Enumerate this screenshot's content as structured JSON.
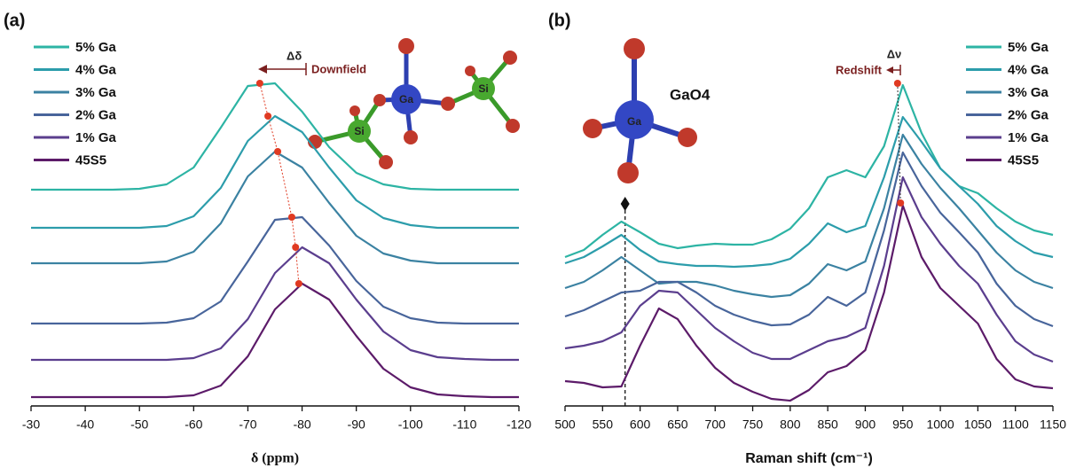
{
  "chart_data": [
    {
      "type": "line",
      "title": "(a)",
      "xlabel": "δ (ppm)",
      "xlim": [
        -30,
        -120
      ],
      "xticks": [
        -30,
        -40,
        -50,
        -60,
        -70,
        -80,
        -90,
        -100,
        -110,
        -120
      ],
      "ylim": [
        0,
        420
      ],
      "legend": "upper left",
      "x": [
        -30,
        -35,
        -40,
        -45,
        -50,
        -55,
        -60,
        -65,
        -70,
        -75,
        -80,
        -85,
        -90,
        -95,
        -100,
        -105,
        -110,
        -115,
        -120
      ],
      "series": [
        {
          "name": "5% Ga",
          "color": "#2db4a4",
          "values": [
            244,
            244,
            244,
            244,
            245,
            250,
            269,
            314,
            361,
            364,
            332,
            292,
            263,
            250,
            245,
            244,
            244,
            244,
            244
          ]
        },
        {
          "name": "4% Ga",
          "color": "#2c9dab",
          "values": [
            201,
            201,
            201,
            201,
            201,
            203,
            214,
            246,
            299,
            327,
            309,
            269,
            232,
            212,
            204,
            201,
            201,
            201,
            201
          ]
        },
        {
          "name": "3% Ga",
          "color": "#3b82a2",
          "values": [
            161,
            161,
            161,
            161,
            161,
            163,
            174,
            206,
            259,
            287,
            269,
            229,
            192,
            172,
            164,
            161,
            161,
            161,
            161
          ]
        },
        {
          "name": "2% Ga",
          "color": "#48659b",
          "values": [
            93,
            93,
            93,
            93,
            93,
            94,
            99,
            118,
            163,
            210,
            213,
            181,
            141,
            112,
            99,
            94,
            93,
            93,
            93
          ]
        },
        {
          "name": "1% Ga",
          "color": "#5b3e8e",
          "values": [
            52,
            52,
            52,
            52,
            52,
            52,
            54,
            65,
            98,
            150,
            179,
            161,
            120,
            84,
            63,
            55,
            53,
            52,
            52
          ]
        },
        {
          "name": "45S5",
          "color": "#5c1b69",
          "values": [
            10,
            10,
            10,
            10,
            10,
            10,
            12,
            23,
            56,
            109,
            138,
            120,
            79,
            42,
            21,
            13,
            11,
            10,
            10
          ]
        }
      ],
      "markers": {
        "color": "#e03a22",
        "x": [
          -72.2,
          -73.7,
          -75.5,
          -78.1,
          -78.8,
          -79.4
        ],
        "values": [
          364,
          327,
          287,
          213,
          179,
          138
        ]
      },
      "annotations": [
        "Δδ",
        "Downfield",
        "Ga",
        "Si",
        "Si"
      ]
    },
    {
      "type": "line",
      "title": "(b)",
      "xlabel": "Raman shift (cm⁻¹)",
      "xlim": [
        500,
        1150
      ],
      "xticks": [
        500,
        550,
        600,
        650,
        700,
        750,
        800,
        850,
        900,
        950,
        1000,
        1050,
        1100,
        1150
      ],
      "ylim": [
        0,
        420
      ],
      "legend": "upper right",
      "x": [
        500,
        525,
        550,
        575,
        600,
        625,
        650,
        675,
        700,
        725,
        750,
        775,
        800,
        825,
        850,
        875,
        900,
        925,
        950,
        975,
        1000,
        1025,
        1050,
        1075,
        1100,
        1125,
        1150
      ],
      "series": [
        {
          "name": "5% Ga",
          "color": "#2db4a4",
          "values": [
            168,
            176,
            193,
            208,
            196,
            183,
            178,
            181,
            183,
            182,
            182,
            188,
            200,
            223,
            258,
            266,
            258,
            293,
            362,
            308,
            268,
            248,
            240,
            223,
            208,
            198,
            193
          ]
        },
        {
          "name": "4% Ga",
          "color": "#2c9dab",
          "values": [
            161,
            168,
            180,
            193,
            176,
            163,
            160,
            158,
            158,
            157,
            158,
            160,
            166,
            183,
            206,
            196,
            203,
            258,
            326,
            298,
            268,
            248,
            228,
            203,
            186,
            173,
            168
          ]
        },
        {
          "name": "3% Ga",
          "color": "#3b82a2",
          "values": [
            133,
            140,
            153,
            168,
            153,
            138,
            140,
            140,
            136,
            130,
            126,
            123,
            125,
            138,
            160,
            153,
            163,
            223,
            306,
            273,
            246,
            223,
            198,
            173,
            153,
            140,
            133
          ]
        },
        {
          "name": "2% Ga",
          "color": "#48659b",
          "values": [
            101,
            108,
            118,
            128,
            130,
            140,
            140,
            128,
            113,
            103,
            96,
            91,
            92,
            103,
            123,
            113,
            128,
            198,
            286,
            248,
            218,
            196,
            173,
            138,
            113,
            98,
            90
          ]
        },
        {
          "name": "1% Ga",
          "color": "#5b3e8e",
          "values": [
            65,
            68,
            73,
            83,
            113,
            130,
            128,
            108,
            88,
            73,
            60,
            53,
            53,
            63,
            73,
            78,
            88,
            158,
            258,
            213,
            183,
            158,
            138,
            103,
            73,
            58,
            50
          ]
        },
        {
          "name": "45S5",
          "color": "#5c1b69",
          "values": [
            28,
            26,
            21,
            22,
            68,
            110,
            98,
            68,
            43,
            26,
            16,
            8,
            6,
            18,
            38,
            45,
            63,
            128,
            226,
            168,
            133,
            113,
            93,
            53,
            30,
            22,
            20
          ]
        }
      ],
      "markers": {
        "color": "#e03a22",
        "x": [
          943,
          947
        ],
        "values": [
          364,
          229
        ]
      },
      "reference_x": 580,
      "annotations": [
        "Δν",
        "Redshift",
        "GaO4",
        "Ga"
      ]
    }
  ]
}
